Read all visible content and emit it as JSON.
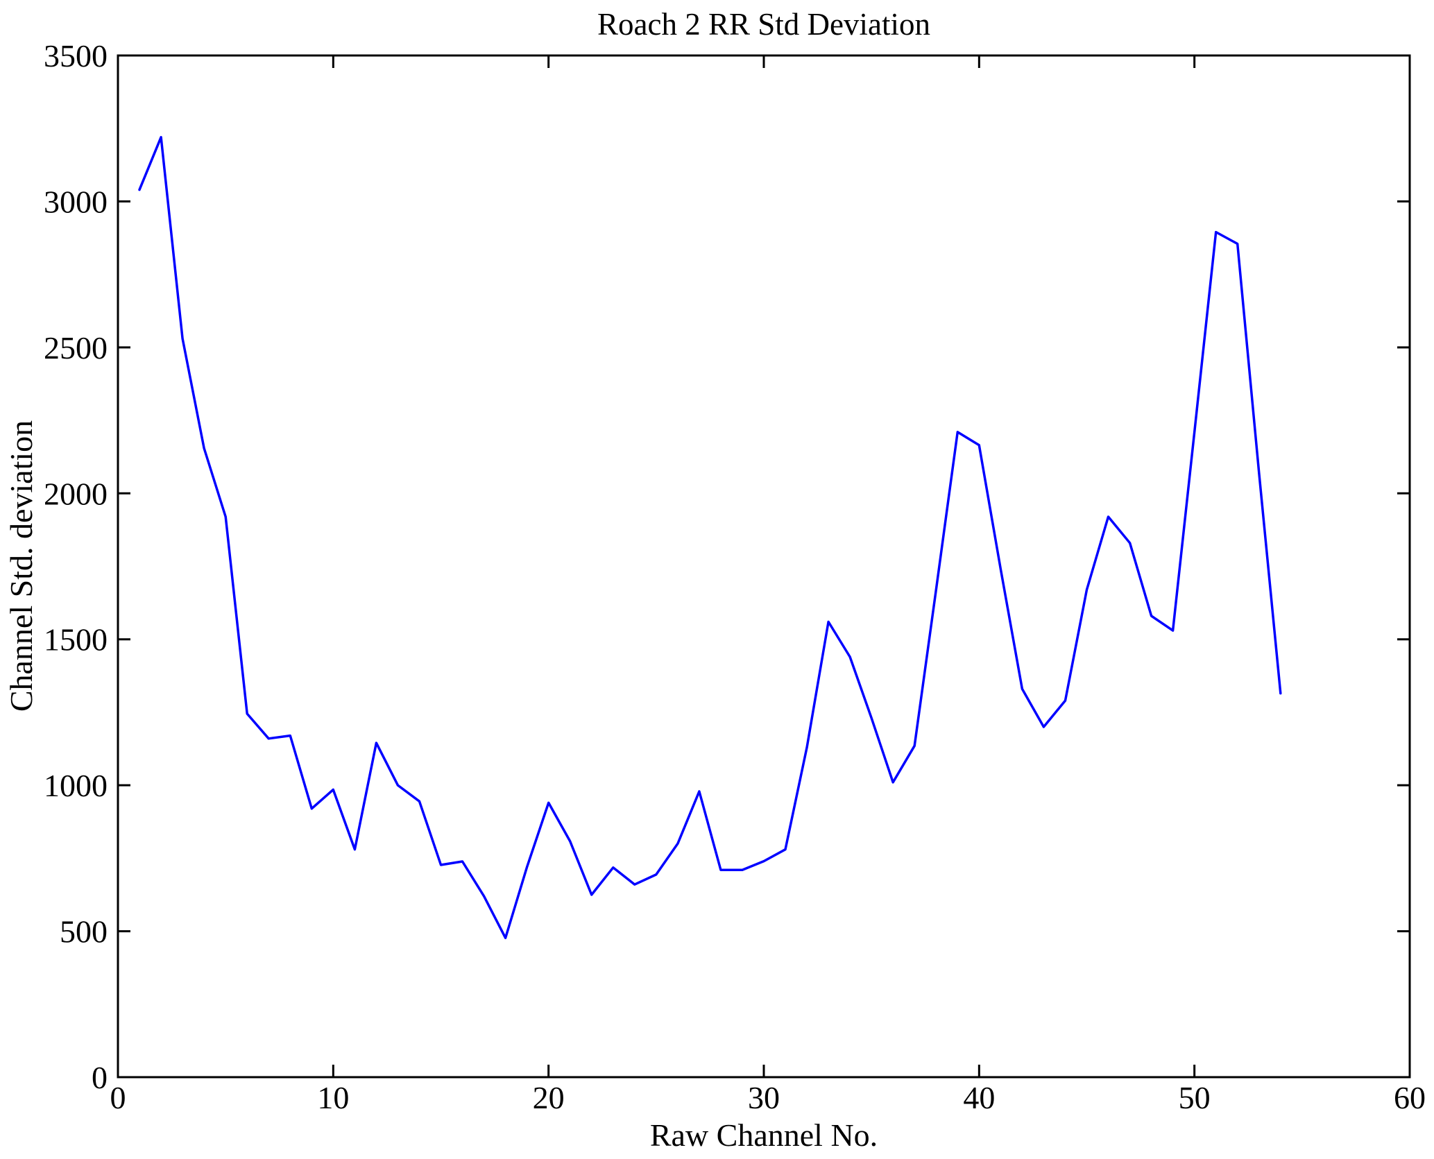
{
  "chart_data": {
    "type": "line",
    "title": "Roach 2 RR Std Deviation",
    "xlabel": "Raw Channel No.",
    "ylabel": "Channel Std. deviation",
    "xlim": [
      0,
      60
    ],
    "ylim": [
      0,
      3500
    ],
    "xticks": [
      0,
      10,
      20,
      30,
      40,
      50,
      60
    ],
    "yticks": [
      0,
      500,
      1000,
      1500,
      2000,
      2500,
      3000,
      3500
    ],
    "grid": false,
    "box": true,
    "legend": null,
    "line_color": "#0000ff",
    "axis_color": "#000000",
    "background": "#ffffff",
    "series_name": "Channel Std. deviation vs Raw Channel No.",
    "x": [
      1,
      2,
      3,
      4,
      5,
      6,
      7,
      8,
      9,
      10,
      11,
      12,
      13,
      14,
      15,
      16,
      17,
      18,
      19,
      20,
      21,
      22,
      23,
      24,
      25,
      26,
      27,
      28,
      29,
      30,
      31,
      32,
      33,
      34,
      35,
      36,
      37,
      38,
      39,
      40,
      41,
      42,
      43,
      44,
      45,
      46,
      47,
      48,
      49,
      50,
      51,
      52,
      53,
      54
    ],
    "values": [
      3040,
      3220,
      2530,
      2155,
      1920,
      1245,
      1160,
      1170,
      920,
      985,
      780,
      1145,
      1000,
      945,
      727,
      739,
      620,
      477,
      720,
      940,
      808,
      625,
      718,
      660,
      694,
      800,
      979,
      710,
      710,
      740,
      780,
      1130,
      1560,
      1440,
      1230,
      1010,
      1135,
      1670,
      2210,
      2165,
      1740,
      1330,
      1200,
      1290,
      1670,
      1920,
      1830,
      1580,
      1530,
      2210,
      2895,
      2855,
      2070,
      1315
    ]
  }
}
